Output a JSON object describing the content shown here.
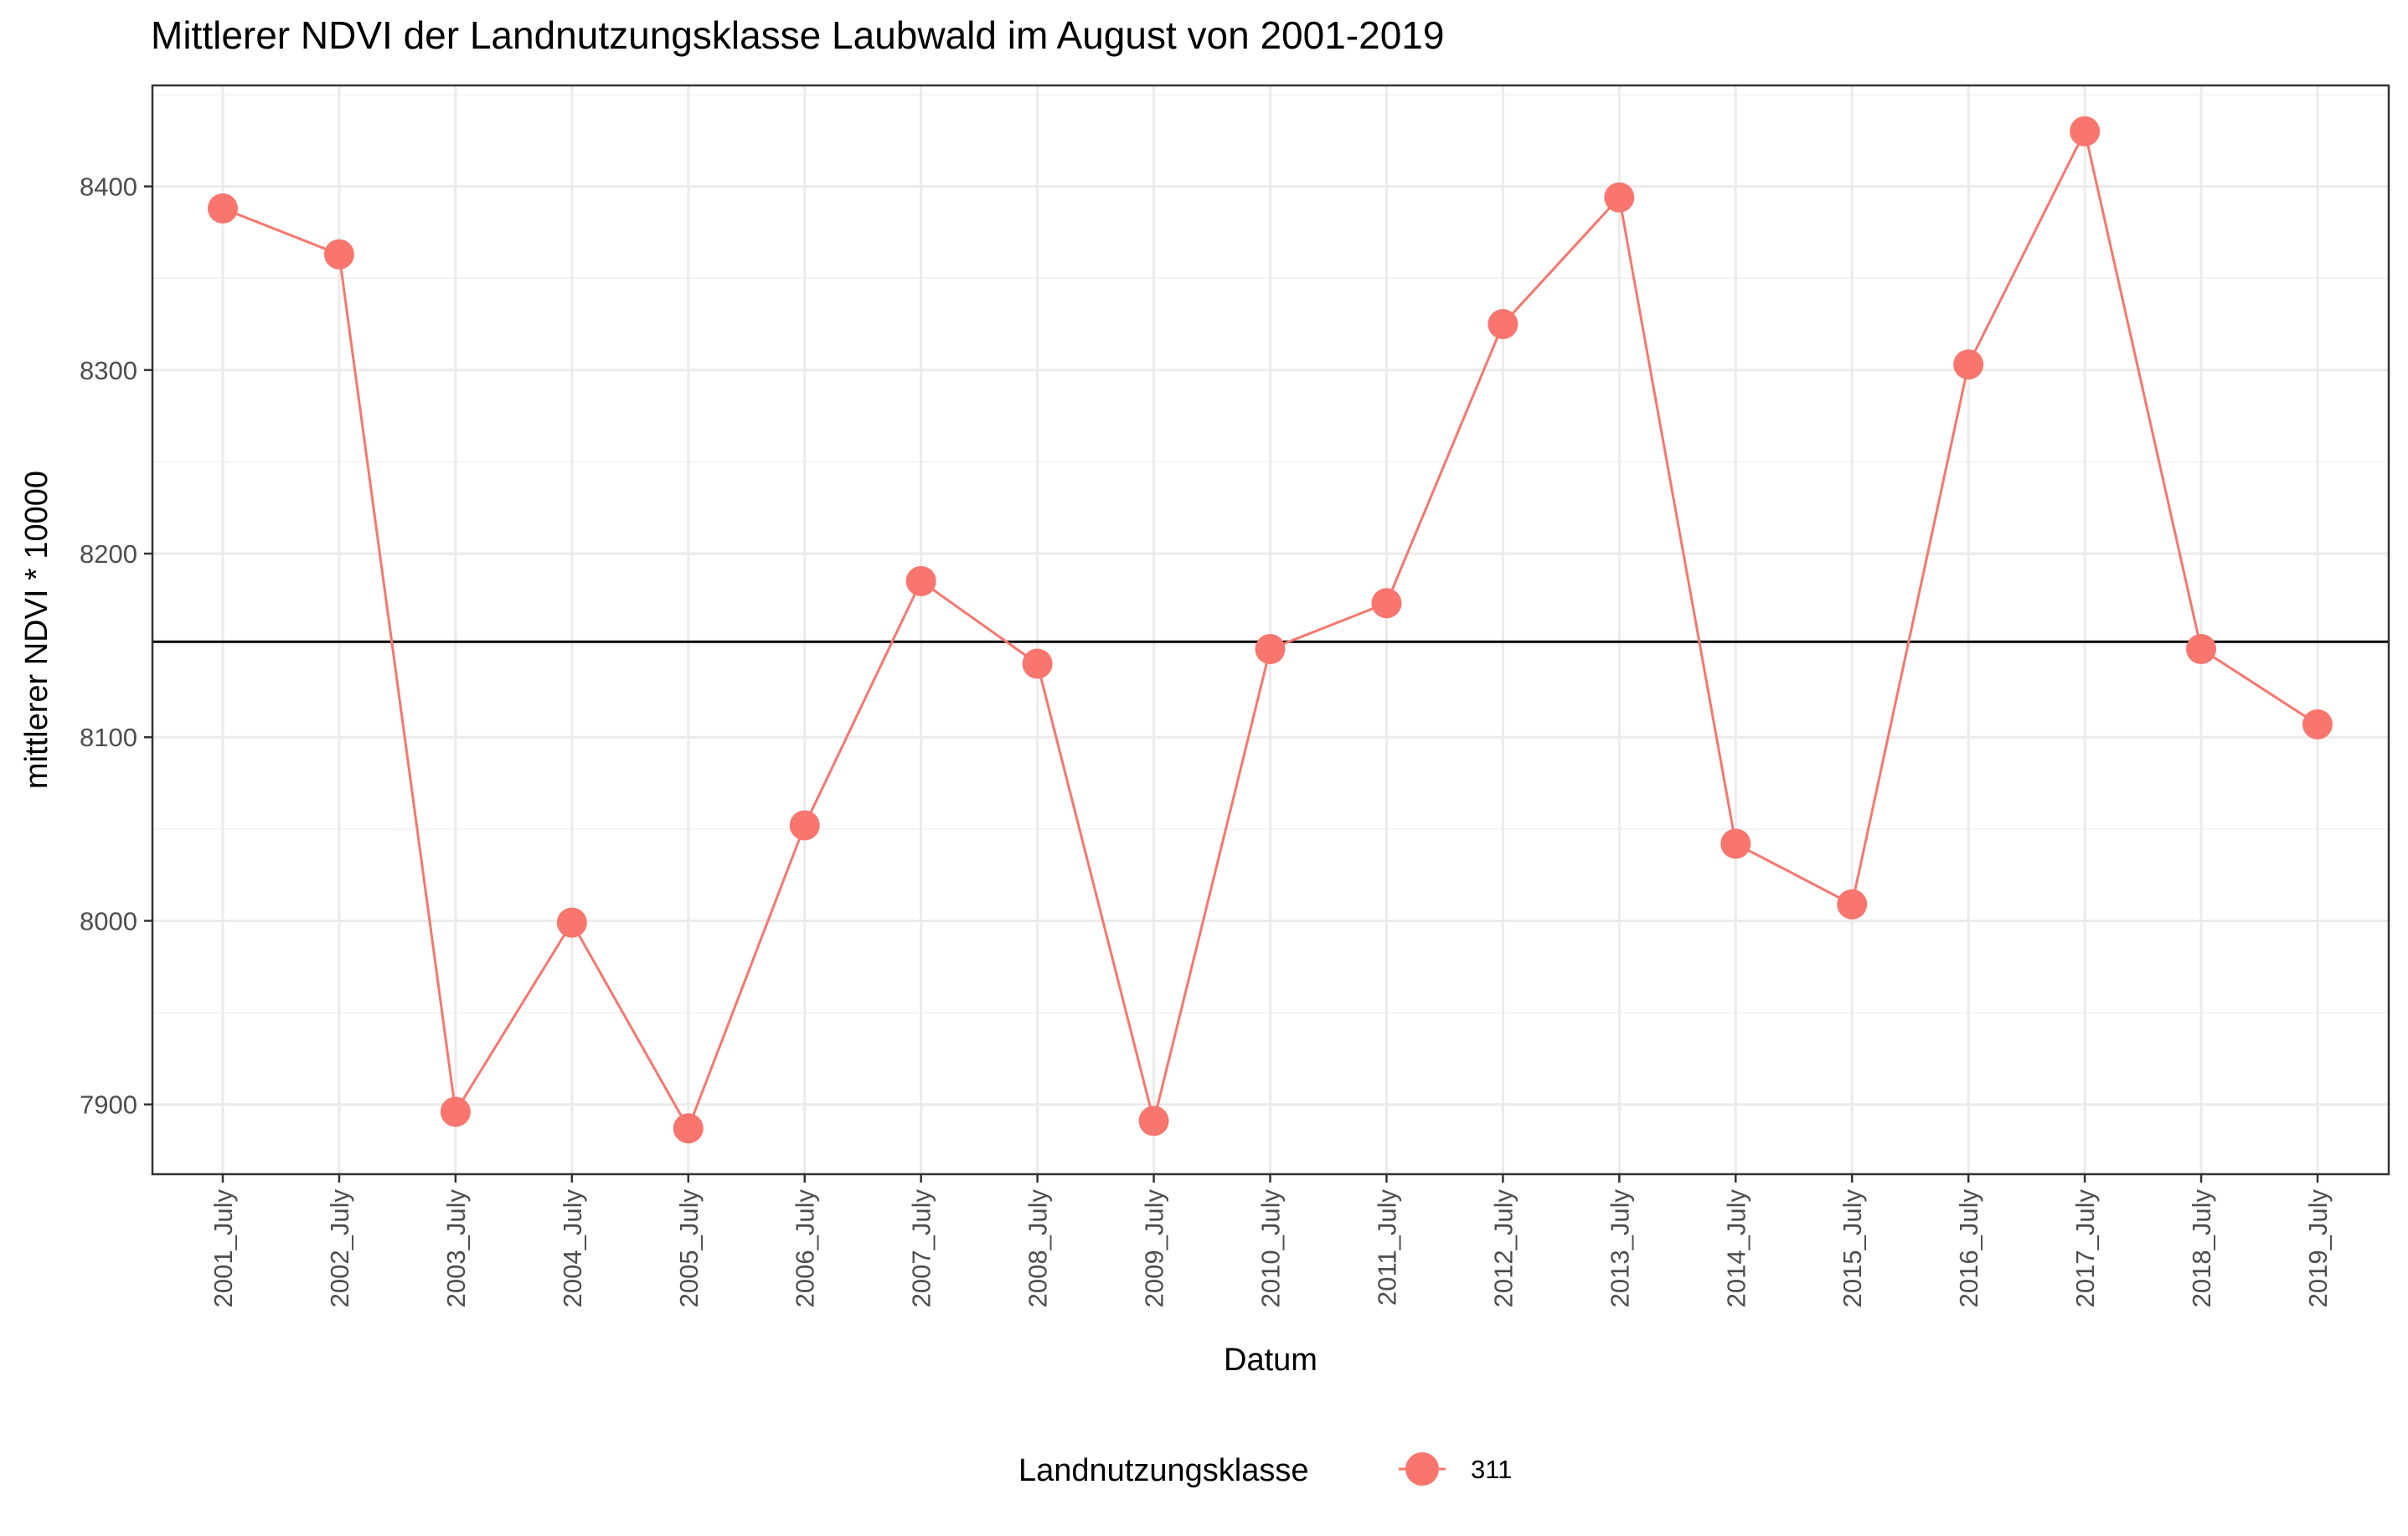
{
  "chart_data": {
    "type": "line",
    "title": "Mittlerer NDVI der Landnutzungsklasse Laubwald im August von 2001-2019",
    "xlabel": "Datum",
    "ylabel": "mittlerer NDVI * 10000",
    "categories": [
      "2001_July",
      "2002_July",
      "2003_July",
      "2004_July",
      "2005_July",
      "2006_July",
      "2007_July",
      "2008_July",
      "2009_July",
      "2010_July",
      "2011_July",
      "2012_July",
      "2013_July",
      "2014_July",
      "2015_July",
      "2016_July",
      "2017_July",
      "2018_July",
      "2019_July"
    ],
    "series": [
      {
        "name": "311",
        "color": "#F8766D",
        "values": [
          8388,
          8363,
          7896,
          7999,
          7887,
          8052,
          8185,
          8140,
          7891,
          8148,
          8173,
          8325,
          8394,
          8042,
          8009,
          8303,
          8430,
          8148,
          8107
        ]
      }
    ],
    "reference_line": {
      "y": 8152,
      "color": "#000000"
    },
    "ylim": [
      7862,
      8455
    ],
    "yticks": [
      7900,
      8000,
      8100,
      8200,
      8300,
      8400
    ],
    "grid": true,
    "legend": {
      "title": "Landnutzungsklasse",
      "position": "bottom"
    }
  }
}
